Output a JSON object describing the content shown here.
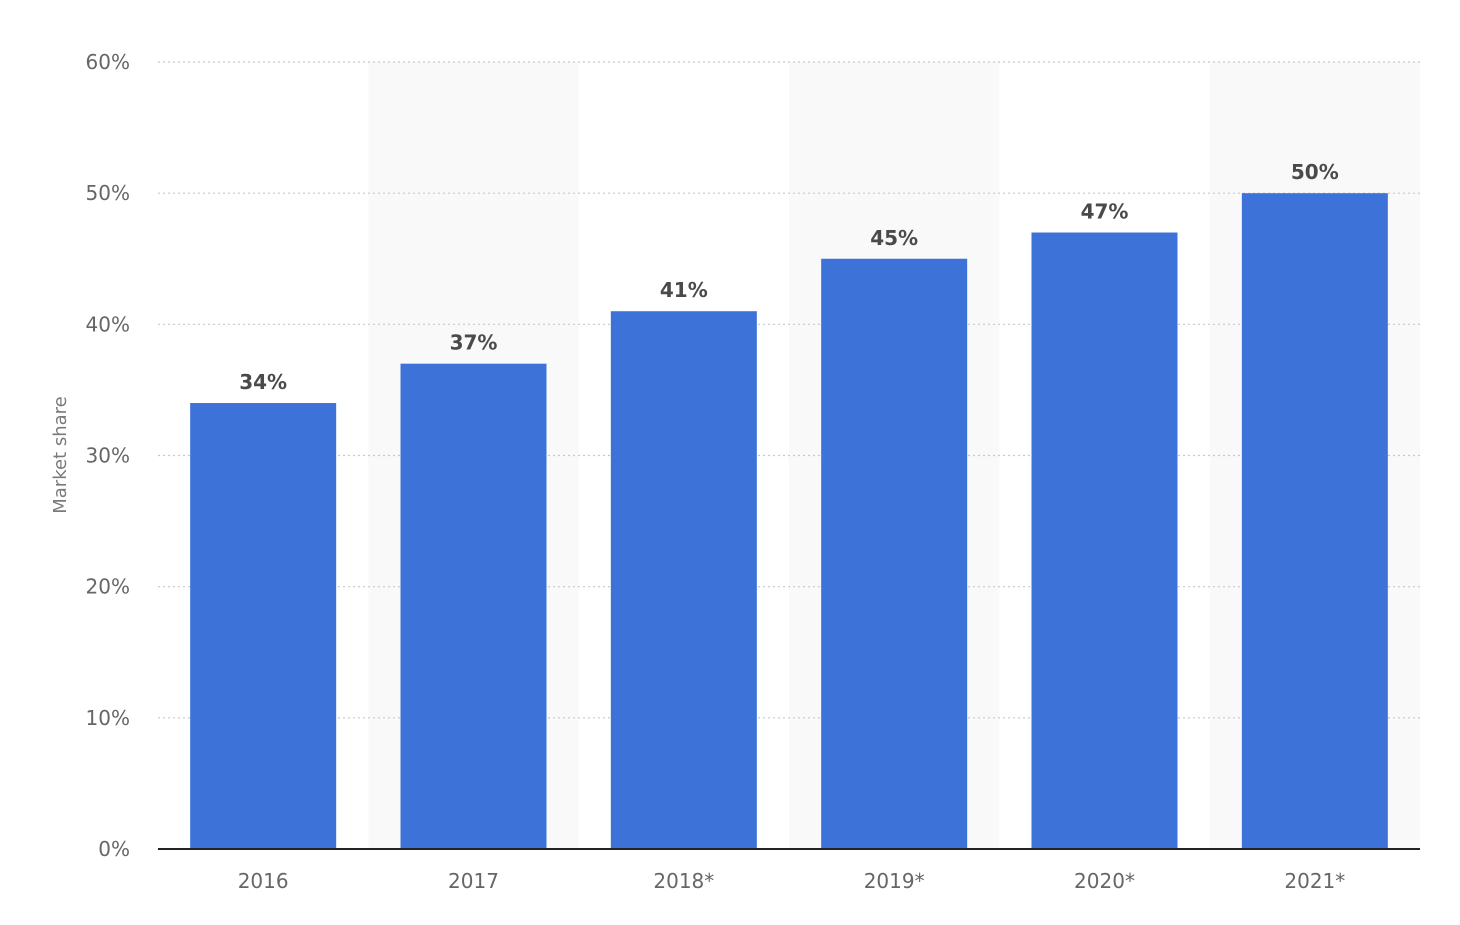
{
  "chart_data": {
    "type": "bar",
    "categories": [
      "2016",
      "2017",
      "2018*",
      "2019*",
      "2020*",
      "2021*"
    ],
    "values": [
      34,
      37,
      41,
      45,
      47,
      50
    ],
    "value_labels": [
      "34%",
      "37%",
      "41%",
      "45%",
      "47%",
      "50%"
    ],
    "ylabel": "Market share",
    "ylim": [
      0,
      60
    ],
    "yticks": [
      0,
      10,
      20,
      30,
      40,
      50,
      60
    ],
    "ytick_labels": [
      "0%",
      "10%",
      "20%",
      "30%",
      "40%",
      "50%",
      "60%"
    ],
    "grid": true,
    "legend": "none",
    "colors": {
      "bar": "#3d73d8",
      "alternate_band": "#f9f9f9",
      "grid": "#c8c8c8",
      "baseline": "#222222"
    }
  }
}
